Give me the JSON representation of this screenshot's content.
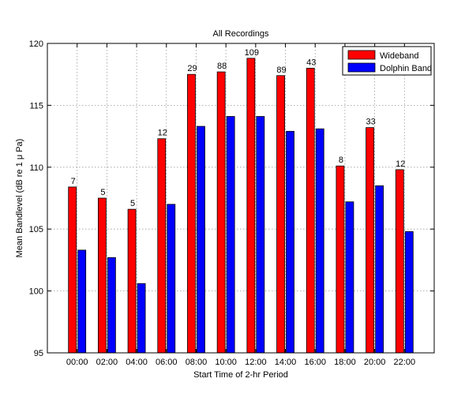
{
  "chart_data": {
    "type": "bar",
    "title": "All Recordings",
    "xlabel": "Start Time of 2-hr Period",
    "ylabel": "Mean Bandlevel (dB re 1 μ Pa)",
    "ylim": [
      95,
      120
    ],
    "yticks": [
      95,
      100,
      105,
      110,
      115,
      120
    ],
    "grid": true,
    "legend_position": "top-right",
    "categories": [
      "00:00",
      "02:00",
      "04:00",
      "06:00",
      "08:00",
      "10:00",
      "12:00",
      "14:00",
      "16:00",
      "18:00",
      "20:00",
      "22:00"
    ],
    "series": [
      {
        "name": "Wideband",
        "color": "#ff0000",
        "values": [
          108.4,
          107.5,
          106.6,
          112.3,
          117.5,
          117.7,
          118.8,
          117.4,
          118.0,
          110.1,
          113.2,
          109.8
        ]
      },
      {
        "name": "Dolphin Band",
        "color": "#0000ff",
        "values": [
          103.3,
          102.7,
          100.6,
          107.0,
          113.3,
          114.1,
          114.1,
          112.9,
          113.1,
          107.2,
          108.5,
          104.8
        ]
      }
    ],
    "annotations": [
      "7",
      "5",
      "5",
      "12",
      "29",
      "88",
      "109",
      "89",
      "43",
      "8",
      "33",
      "12"
    ]
  }
}
